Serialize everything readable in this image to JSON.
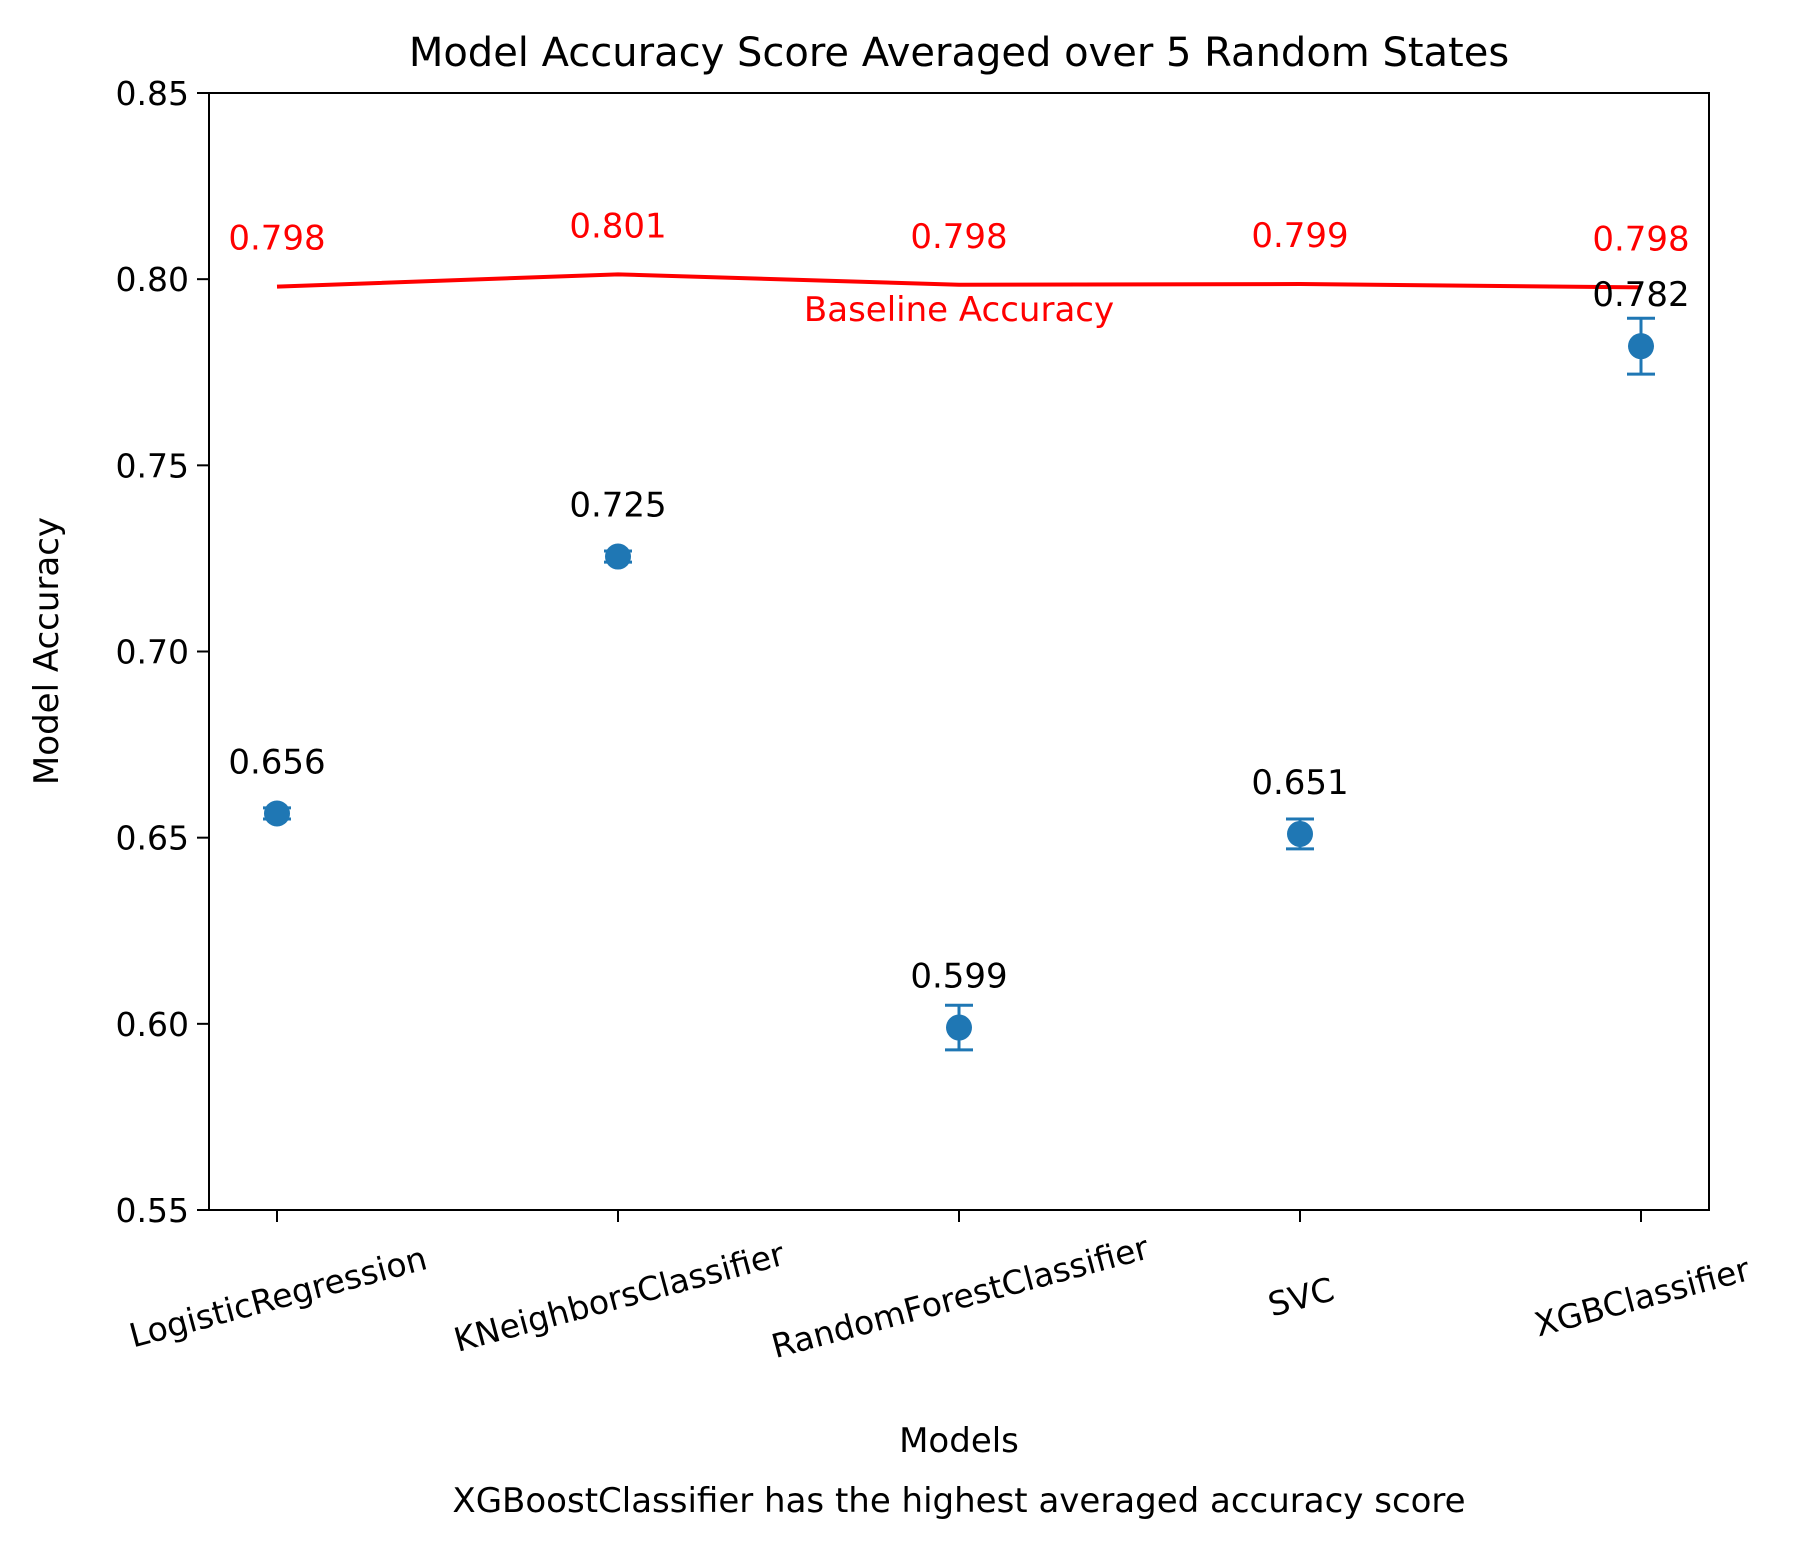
{
  "chart_data": {
    "type": "scatter",
    "title": "Model Accuracy Score Averaged over 5 Random States",
    "xlabel": "Models",
    "ylabel": "Model Accuracy",
    "caption": "XGBoostClassifier has the highest averaged accuracy score",
    "ylim": [
      0.55,
      0.85
    ],
    "yticks": [
      "0.55",
      "0.60",
      "0.65",
      "0.70",
      "0.75",
      "0.80",
      "0.85"
    ],
    "categories": [
      "LogisticRegression",
      "KNeighborsClassifier",
      "RandomForestClassifier",
      "SVC",
      "XGBClassifier"
    ],
    "series": [
      {
        "values": [
          0.6565,
          0.7255,
          0.599,
          0.651,
          0.782
        ],
        "error": [
          0.0015,
          0.0015,
          0.006,
          0.004,
          0.0075
        ],
        "labels": [
          "0.656",
          "0.725",
          "0.599",
          "0.651",
          "0.782"
        ],
        "color": "#1f77b4"
      },
      {
        "name": "Baseline Accuracy",
        "values": [
          0.798,
          0.8013,
          0.7985,
          0.7987,
          0.7978
        ],
        "labels": [
          "0.798",
          "0.801",
          "0.798",
          "0.799",
          "0.798"
        ],
        "color": "#ff0000"
      }
    ],
    "grid": false
  }
}
